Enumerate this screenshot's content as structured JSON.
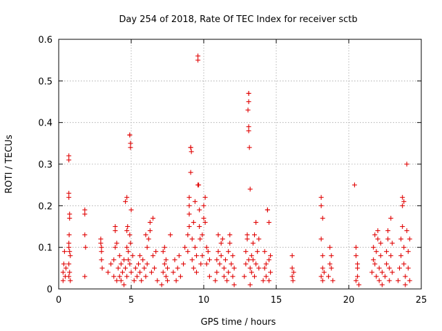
{
  "chart_data": {
    "type": "scatter",
    "title": "Day 254 of 2018, Rate Of TEC Index for receiver sctb",
    "xlabel": "GPS time / hours",
    "ylabel": "ROTI / TECUs",
    "xlim": [
      0,
      25
    ],
    "ylim": [
      0,
      0.6
    ],
    "xticks": [
      0,
      5,
      10,
      15,
      20,
      25
    ],
    "yticks": [
      0,
      0.1,
      0.2,
      0.3,
      0.4,
      0.5,
      0.6
    ],
    "xtick_labels": [
      "0",
      "5",
      "10",
      "15",
      "20",
      "25"
    ],
    "ytick_labels": [
      "0",
      "0.1",
      "0.2",
      "0.3",
      "0.4",
      "0.5",
      "0.6"
    ],
    "grid": true,
    "marker": "+",
    "color": "#e00000",
    "series": [
      {
        "name": "ROTI",
        "points": [
          [
            0.3,
            0.02
          ],
          [
            0.3,
            0.04
          ],
          [
            0.35,
            0.06
          ],
          [
            0.4,
            0.09
          ],
          [
            0.45,
            0.03
          ],
          [
            0.5,
            0.05
          ],
          [
            0.7,
            0.31
          ],
          [
            0.7,
            0.32
          ],
          [
            0.7,
            0.23
          ],
          [
            0.7,
            0.22
          ],
          [
            0.75,
            0.17
          ],
          [
            0.75,
            0.18
          ],
          [
            0.7,
            0.1
          ],
          [
            0.7,
            0.11
          ],
          [
            0.8,
            0.08
          ],
          [
            0.7,
            0.06
          ],
          [
            0.75,
            0.04
          ],
          [
            0.7,
            0.03
          ],
          [
            0.8,
            0.02
          ],
          [
            0.75,
            0.09
          ],
          [
            0.72,
            0.13
          ],
          [
            1.8,
            0.18
          ],
          [
            1.8,
            0.19
          ],
          [
            1.8,
            0.13
          ],
          [
            1.85,
            0.1
          ],
          [
            1.8,
            0.03
          ],
          [
            2.9,
            0.12
          ],
          [
            2.9,
            0.11
          ],
          [
            2.95,
            0.09
          ],
          [
            2.95,
            0.07
          ],
          [
            3.0,
            0.05
          ],
          [
            2.95,
            0.1
          ],
          [
            3.4,
            0.04
          ],
          [
            3.6,
            0.06
          ],
          [
            3.8,
            0.03
          ],
          [
            3.8,
            0.07
          ],
          [
            3.9,
            0.1
          ],
          [
            3.9,
            0.14
          ],
          [
            3.9,
            0.15
          ],
          [
            4.0,
            0.11
          ],
          [
            4.0,
            0.02
          ],
          [
            4.1,
            0.05
          ],
          [
            4.2,
            0.08
          ],
          [
            4.2,
            0.03
          ],
          [
            4.3,
            0.06
          ],
          [
            4.3,
            0.02
          ],
          [
            4.4,
            0.04
          ],
          [
            4.5,
            0.07
          ],
          [
            4.5,
            0.01
          ],
          [
            4.6,
            0.21
          ],
          [
            4.7,
            0.22
          ],
          [
            4.7,
            0.14
          ],
          [
            4.75,
            0.15
          ],
          [
            4.7,
            0.1
          ],
          [
            4.8,
            0.09
          ],
          [
            4.6,
            0.05
          ],
          [
            4.7,
            0.03
          ],
          [
            4.8,
            0.07
          ],
          [
            4.9,
            0.37
          ],
          [
            4.9,
            0.37
          ],
          [
            4.95,
            0.35
          ],
          [
            4.95,
            0.34
          ],
          [
            4.9,
            0.13
          ],
          [
            4.95,
            0.11
          ],
          [
            4.9,
            0.06
          ],
          [
            5.0,
            0.04
          ],
          [
            5.0,
            0.19
          ],
          [
            5.1,
            0.08
          ],
          [
            5.2,
            0.02
          ],
          [
            5.3,
            0.05
          ],
          [
            5.4,
            0.03
          ],
          [
            5.5,
            0.06
          ],
          [
            5.6,
            0.04
          ],
          [
            5.6,
            0.08
          ],
          [
            5.7,
            0.02
          ],
          [
            5.8,
            0.07
          ],
          [
            5.9,
            0.05
          ],
          [
            6.0,
            0.03
          ],
          [
            6.0,
            0.13
          ],
          [
            6.1,
            0.06
          ],
          [
            6.1,
            0.1
          ],
          [
            6.2,
            0.12
          ],
          [
            6.3,
            0.14
          ],
          [
            6.3,
            0.16
          ],
          [
            6.4,
            0.04
          ],
          [
            6.5,
            0.17
          ],
          [
            6.5,
            0.08
          ],
          [
            6.6,
            0.05
          ],
          [
            6.7,
            0.09
          ],
          [
            6.8,
            0.02
          ],
          [
            7.1,
            0.01
          ],
          [
            7.2,
            0.04
          ],
          [
            7.2,
            0.09
          ],
          [
            7.3,
            0.06
          ],
          [
            7.3,
            0.1
          ],
          [
            7.4,
            0.03
          ],
          [
            7.4,
            0.07
          ],
          [
            7.5,
            0.05
          ],
          [
            7.5,
            0.02
          ],
          [
            7.7,
            0.13
          ],
          [
            7.9,
            0.04
          ],
          [
            8.0,
            0.07
          ],
          [
            8.1,
            0.02
          ],
          [
            8.2,
            0.05
          ],
          [
            8.3,
            0.08
          ],
          [
            8.4,
            0.03
          ],
          [
            8.6,
            0.06
          ],
          [
            8.7,
            0.1
          ],
          [
            8.9,
            0.09
          ],
          [
            8.9,
            0.13
          ],
          [
            9.0,
            0.15
          ],
          [
            9.0,
            0.18
          ],
          [
            9.0,
            0.2
          ],
          [
            9.0,
            0.22
          ],
          [
            9.1,
            0.34
          ],
          [
            9.1,
            0.34
          ],
          [
            9.15,
            0.33
          ],
          [
            9.1,
            0.28
          ],
          [
            9.2,
            0.12
          ],
          [
            9.2,
            0.07
          ],
          [
            9.3,
            0.05
          ],
          [
            9.3,
            0.16
          ],
          [
            9.4,
            0.21
          ],
          [
            9.4,
            0.1
          ],
          [
            9.5,
            0.04
          ],
          [
            9.5,
            0.08
          ],
          [
            9.6,
            0.56
          ],
          [
            9.6,
            0.55
          ],
          [
            9.6,
            0.25
          ],
          [
            9.65,
            0.25
          ],
          [
            9.7,
            0.15
          ],
          [
            9.7,
            0.19
          ],
          [
            9.75,
            0.12
          ],
          [
            9.8,
            0.06
          ],
          [
            9.9,
            0.08
          ],
          [
            9.9,
            0.13
          ],
          [
            10.0,
            0.17
          ],
          [
            10.0,
            0.2
          ],
          [
            10.1,
            0.22
          ],
          [
            10.1,
            0.16
          ],
          [
            10.2,
            0.1
          ],
          [
            10.2,
            0.06
          ],
          [
            10.3,
            0.09
          ],
          [
            10.4,
            0.03
          ],
          [
            10.4,
            0.07
          ],
          [
            10.8,
            0.02
          ],
          [
            10.9,
            0.04
          ],
          [
            10.9,
            0.07
          ],
          [
            11.0,
            0.09
          ],
          [
            11.0,
            0.13
          ],
          [
            11.1,
            0.06
          ],
          [
            11.2,
            0.11
          ],
          [
            11.2,
            0.08
          ],
          [
            11.3,
            0.12
          ],
          [
            11.4,
            0.05
          ],
          [
            11.4,
            0.03
          ],
          [
            11.5,
            0.07
          ],
          [
            11.6,
            0.02
          ],
          [
            11.7,
            0.04
          ],
          [
            11.7,
            0.09
          ],
          [
            11.8,
            0.11
          ],
          [
            11.8,
            0.13
          ],
          [
            11.9,
            0.06
          ],
          [
            12.0,
            0.03
          ],
          [
            12.0,
            0.08
          ],
          [
            12.1,
            0.05
          ],
          [
            12.1,
            0.01
          ],
          [
            12.8,
            0.03
          ],
          [
            12.9,
            0.06
          ],
          [
            12.9,
            0.09
          ],
          [
            13.0,
            0.12
          ],
          [
            13.0,
            0.13
          ],
          [
            13.1,
            0.47
          ],
          [
            13.1,
            0.47
          ],
          [
            13.1,
            0.45
          ],
          [
            13.05,
            0.43
          ],
          [
            13.1,
            0.39
          ],
          [
            13.1,
            0.38
          ],
          [
            13.15,
            0.34
          ],
          [
            13.2,
            0.24
          ],
          [
            13.1,
            0.07
          ],
          [
            13.2,
            0.05
          ],
          [
            13.2,
            0.01
          ],
          [
            13.3,
            0.04
          ],
          [
            13.3,
            0.08
          ],
          [
            13.4,
            0.11
          ],
          [
            13.4,
            0.07
          ],
          [
            13.5,
            0.13
          ],
          [
            13.5,
            0.03
          ],
          [
            13.6,
            0.06
          ],
          [
            13.6,
            0.16
          ],
          [
            13.7,
            0.09
          ],
          [
            13.8,
            0.12
          ],
          [
            13.8,
            0.05
          ],
          [
            14.1,
            0.02
          ],
          [
            14.2,
            0.05
          ],
          [
            14.2,
            0.09
          ],
          [
            14.3,
            0.06
          ],
          [
            14.3,
            0.03
          ],
          [
            14.4,
            0.19
          ],
          [
            14.4,
            0.19
          ],
          [
            14.5,
            0.16
          ],
          [
            14.5,
            0.07
          ],
          [
            14.6,
            0.04
          ],
          [
            14.6,
            0.08
          ],
          [
            14.5,
            0.02
          ],
          [
            16.1,
            0.08
          ],
          [
            16.1,
            0.05
          ],
          [
            16.1,
            0.03
          ],
          [
            16.15,
            0.02
          ],
          [
            16.2,
            0.04
          ],
          [
            18.1,
            0.22
          ],
          [
            18.1,
            0.2
          ],
          [
            18.2,
            0.17
          ],
          [
            18.1,
            0.12
          ],
          [
            18.2,
            0.08
          ],
          [
            18.2,
            0.05
          ],
          [
            18.1,
            0.03
          ],
          [
            18.2,
            0.02
          ],
          [
            18.3,
            0.04
          ],
          [
            18.6,
            0.03
          ],
          [
            18.7,
            0.06
          ],
          [
            18.7,
            0.1
          ],
          [
            18.8,
            0.08
          ],
          [
            18.8,
            0.05
          ],
          [
            18.9,
            0.02
          ],
          [
            20.4,
            0.25
          ],
          [
            20.5,
            0.1
          ],
          [
            20.5,
            0.08
          ],
          [
            20.6,
            0.05
          ],
          [
            20.6,
            0.03
          ],
          [
            20.7,
            0.01
          ],
          [
            20.6,
            0.06
          ],
          [
            20.5,
            0.02
          ],
          [
            21.6,
            0.04
          ],
          [
            21.7,
            0.07
          ],
          [
            21.7,
            0.1
          ],
          [
            21.8,
            0.13
          ],
          [
            21.8,
            0.06
          ],
          [
            21.9,
            0.03
          ],
          [
            21.9,
            0.09
          ],
          [
            22.0,
            0.12
          ],
          [
            22.0,
            0.14
          ],
          [
            22.1,
            0.05
          ],
          [
            22.1,
            0.02
          ],
          [
            22.2,
            0.08
          ],
          [
            22.2,
            0.11
          ],
          [
            22.3,
            0.04
          ],
          [
            22.3,
            0.01
          ],
          [
            22.5,
            0.03
          ],
          [
            22.6,
            0.06
          ],
          [
            22.6,
            0.09
          ],
          [
            22.7,
            0.12
          ],
          [
            22.7,
            0.14
          ],
          [
            22.8,
            0.05
          ],
          [
            22.8,
            0.02
          ],
          [
            22.9,
            0.08
          ],
          [
            22.9,
            0.17
          ],
          [
            23.0,
            0.11
          ],
          [
            23.0,
            0.04
          ],
          [
            23.4,
            0.02
          ],
          [
            23.5,
            0.05
          ],
          [
            23.6,
            0.08
          ],
          [
            23.6,
            0.12
          ],
          [
            23.7,
            0.2
          ],
          [
            23.7,
            0.22
          ],
          [
            23.8,
            0.21
          ],
          [
            23.7,
            0.15
          ],
          [
            23.8,
            0.1
          ],
          [
            23.8,
            0.06
          ],
          [
            23.9,
            0.03
          ],
          [
            23.9,
            0.01
          ],
          [
            24.0,
            0.3
          ],
          [
            24.0,
            0.14
          ],
          [
            24.1,
            0.09
          ],
          [
            24.1,
            0.05
          ],
          [
            24.2,
            0.12
          ],
          [
            24.2,
            0.02
          ]
        ]
      }
    ]
  }
}
